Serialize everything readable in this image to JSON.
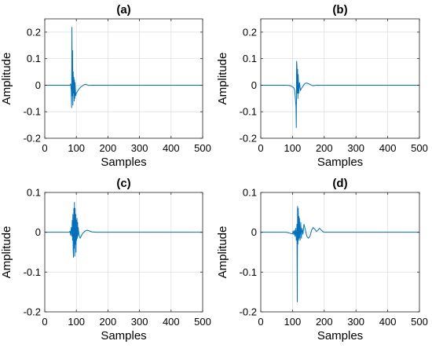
{
  "chart_data": [
    {
      "type": "line",
      "title": "(a)",
      "xlabel": "Samples",
      "ylabel": "Amplitude",
      "xlim": [
        0,
        500
      ],
      "ylim": [
        -0.2,
        0.25
      ],
      "xticks": [
        0,
        100,
        200,
        300,
        400,
        500
      ],
      "yticks": [
        -0.2,
        -0.1,
        0,
        0.1,
        0.2
      ],
      "ytick_labels": [
        "-0.2",
        "-0.1",
        "0",
        "0.1",
        "0.2"
      ],
      "grid": true,
      "color": "#0072BD",
      "series": [
        {
          "x": [
            0,
            80,
            82,
            84,
            85,
            86,
            87,
            88,
            89,
            90,
            91,
            92,
            93,
            94,
            95,
            96,
            98,
            100,
            103,
            106,
            110,
            115,
            120,
            125,
            130,
            135,
            140,
            145,
            150,
            200,
            300,
            400,
            500
          ],
          "values": [
            0,
            0,
            0.005,
            -0.02,
            -0.085,
            0.218,
            -0.04,
            0.13,
            -0.075,
            0.05,
            -0.03,
            0.03,
            -0.06,
            0.02,
            -0.05,
            0.01,
            -0.04,
            -0.03,
            -0.025,
            -0.018,
            -0.012,
            -0.006,
            -0.002,
            0.002,
            0.003,
            0.001,
            -0.001,
            0,
            0,
            0,
            0,
            0,
            0
          ]
        }
      ]
    },
    {
      "type": "line",
      "title": "(b)",
      "xlabel": "Samples",
      "ylabel": "Amplitude",
      "xlim": [
        0,
        500
      ],
      "ylim": [
        -0.2,
        0.25
      ],
      "xticks": [
        0,
        100,
        200,
        300,
        400,
        500
      ],
      "yticks": [
        -0.2,
        -0.1,
        0,
        0.1,
        0.2
      ],
      "ytick_labels": [
        "-0.2",
        "-0.1",
        "0",
        "0.1",
        "0.2"
      ],
      "grid": true,
      "color": "#0072BD",
      "series": [
        {
          "x": [
            0,
            80,
            90,
            95,
            100,
            104,
            107,
            109,
            111,
            112,
            113,
            114,
            115,
            116,
            117,
            118,
            120,
            122,
            125,
            128,
            132,
            136,
            140,
            145,
            150,
            155,
            160,
            165,
            170,
            175,
            180,
            200,
            300,
            400,
            500
          ],
          "values": [
            0,
            0,
            -0.001,
            -0.003,
            -0.006,
            -0.01,
            -0.02,
            -0.05,
            -0.08,
            -0.16,
            0.09,
            0.075,
            -0.03,
            0.06,
            -0.05,
            0.04,
            -0.03,
            0.01,
            -0.02,
            -0.012,
            -0.006,
            0.002,
            0.007,
            0.008,
            0.006,
            0.003,
            0,
            -0.002,
            -0.001,
            0,
            0,
            0,
            0,
            0,
            0
          ]
        }
      ]
    },
    {
      "type": "line",
      "title": "(c)",
      "xlabel": "Samples",
      "ylabel": "Amplitude",
      "xlim": [
        0,
        500
      ],
      "ylim": [
        -0.2,
        0.1
      ],
      "xticks": [
        0,
        100,
        200,
        300,
        400,
        500
      ],
      "yticks": [
        -0.2,
        -0.1,
        0,
        0.1
      ],
      "ytick_labels": [
        "-0.2",
        "-0.1",
        "0",
        "0.1"
      ],
      "grid": true,
      "color": "#0072BD",
      "series": [
        {
          "x": [
            0,
            78,
            80,
            82,
            84,
            86,
            87,
            88,
            89,
            90,
            91,
            92,
            93,
            94,
            95,
            96,
            97,
            98,
            99,
            100,
            101,
            102,
            103,
            104,
            105,
            106,
            108,
            110,
            112,
            114,
            117,
            120,
            125,
            130,
            135,
            140,
            145,
            150,
            160,
            170,
            180,
            200,
            300,
            400,
            500
          ],
          "values": [
            0,
            0,
            0.003,
            -0.008,
            0.012,
            -0.01,
            0.03,
            -0.02,
            0.045,
            -0.045,
            -0.063,
            0.06,
            -0.04,
            0.075,
            -0.06,
            0.06,
            -0.03,
            0.045,
            -0.05,
            0.03,
            -0.02,
            0.035,
            -0.015,
            0.025,
            -0.01,
            0.012,
            -0.005,
            -0.01,
            -0.015,
            -0.012,
            -0.007,
            -0.003,
            0.001,
            0.004,
            0.005,
            0.004,
            0.002,
            0.001,
            0,
            0,
            0,
            0,
            0,
            0,
            0
          ]
        }
      ]
    },
    {
      "type": "line",
      "title": "(d)",
      "xlabel": "Samples",
      "ylabel": "Amplitude",
      "xlim": [
        0,
        500
      ],
      "ylim": [
        -0.2,
        0.1
      ],
      "xticks": [
        0,
        100,
        200,
        300,
        400,
        500
      ],
      "yticks": [
        -0.2,
        -0.1,
        0,
        0.1
      ],
      "ytick_labels": [
        "-0.2",
        "-0.1",
        "0",
        "0.1"
      ],
      "grid": true,
      "color": "#0072BD",
      "series": [
        {
          "x": [
            0,
            80,
            85,
            90,
            95,
            100,
            102,
            104,
            106,
            108,
            110,
            112,
            114,
            115,
            116,
            117,
            118,
            119,
            120,
            121,
            122,
            124,
            126,
            128,
            130,
            133,
            136,
            140,
            145,
            150,
            155,
            160,
            165,
            170,
            175,
            180,
            185,
            190,
            195,
            200,
            210,
            220,
            300,
            400,
            500
          ],
          "values": [
            0,
            0,
            -0.001,
            -0.002,
            -0.003,
            -0.004,
            0.003,
            -0.006,
            0.005,
            -0.01,
            0.01,
            -0.02,
            0.02,
            -0.175,
            0.065,
            -0.03,
            0.06,
            -0.02,
            0.04,
            -0.015,
            0.035,
            -0.02,
            0.025,
            -0.015,
            0.01,
            -0.005,
            0.02,
            0.008,
            -0.01,
            -0.015,
            -0.01,
            0.005,
            0.012,
            0.008,
            0.002,
            0.005,
            0.01,
            0.006,
            0.002,
            0,
            0,
            0,
            0,
            0,
            0
          ]
        }
      ]
    }
  ]
}
